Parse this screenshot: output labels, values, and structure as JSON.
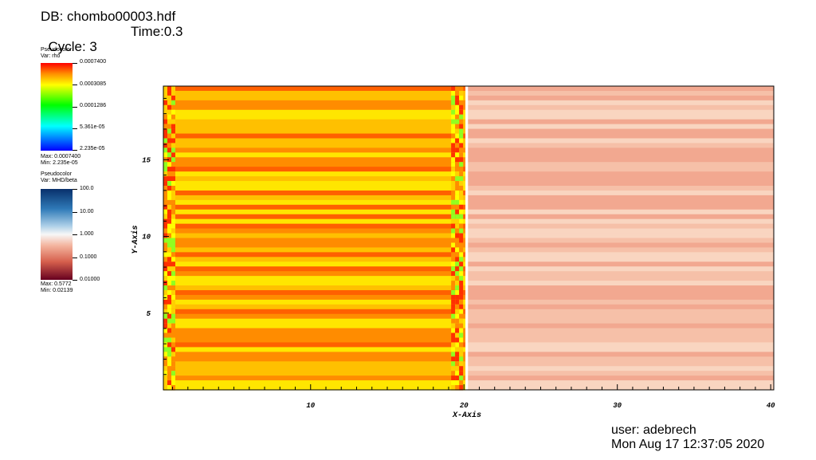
{
  "header": {
    "db": "DB: chombo00003.hdf",
    "cycle": "Cycle: 3",
    "time": "Time:0.3"
  },
  "legends": [
    {
      "title": "Pseudocolor",
      "var": "Var: rho",
      "ticks": [
        "0.0007400",
        "0.0003085",
        "0.0001286",
        "5.361e-05",
        "2.235e-05"
      ],
      "max": "Max: 0.0007400",
      "min": "Min: 2.235e-05"
    },
    {
      "title": "Pseudocolor",
      "var": "Var: MHD/beta",
      "ticks": [
        "100.0",
        "10.00",
        "1.000",
        "0.1000",
        "0.01000"
      ],
      "max": "Max: 0.5772",
      "min": "Min: 0.02139"
    }
  ],
  "chart_data": {
    "type": "heatmap",
    "xlabel": "X-Axis",
    "ylabel": "Y-Axis",
    "xlim": [
      0.4,
      40.2
    ],
    "ylim": [
      0,
      19.8
    ],
    "xticks": [
      10,
      20,
      30,
      40
    ],
    "yticks": [
      5,
      10,
      15
    ],
    "colormap_left": [
      "#ff6000",
      "#ff8c00",
      "#ffc000",
      "#ffe600"
    ],
    "colormap_right": [
      "#f2a890",
      "#f6c0a8",
      "#f9d5c0"
    ],
    "regions": [
      {
        "var": "rho",
        "x_range": [
          0.4,
          20.1
        ],
        "y_range": [
          0,
          19.8
        ]
      },
      {
        "var": "MHD/beta",
        "x_range": [
          20.1,
          40.2
        ],
        "y_range": [
          0,
          19.8
        ]
      }
    ]
  },
  "footer": {
    "user": "user: adebrech",
    "date": "Mon Aug 17 12:37:05 2020"
  }
}
